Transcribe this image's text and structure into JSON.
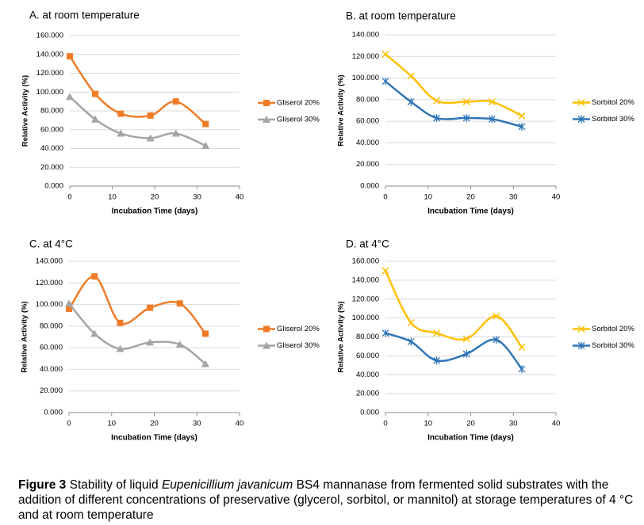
{
  "chart_data": [
    {
      "type": "line",
      "title": "A. at room temperature",
      "x_label": "Incubation Time (days)",
      "y_label": "Relative Activity (%)",
      "xlim": [
        0,
        40
      ],
      "xticks": [
        0,
        10,
        20,
        30,
        40
      ],
      "ylim": [
        0,
        160
      ],
      "yticks": [
        {
          "value": 0,
          "label": "0.000"
        },
        {
          "value": 20,
          "label": "20.000"
        },
        {
          "value": 40,
          "label": "40.000"
        },
        {
          "value": 60,
          "label": "60.000"
        },
        {
          "value": 80,
          "label": "80.000"
        },
        {
          "value": 100,
          "label": "100.000"
        },
        {
          "value": 120,
          "label": "120.000"
        },
        {
          "value": 140,
          "label": "140.000"
        },
        {
          "value": 160,
          "label": "160.000"
        }
      ],
      "grid": true,
      "legend": "right",
      "x": [
        0,
        6,
        12,
        19,
        25,
        32
      ],
      "series": [
        {
          "name": "Gliserol 20%",
          "color": "#f07c28",
          "marker": "square",
          "values": [
            138,
            98,
            77,
            75,
            90,
            66
          ]
        },
        {
          "name": "Gliserol 30%",
          "color": "#a5a5a5",
          "marker": "triangle",
          "values": [
            95,
            71,
            56,
            51,
            56,
            43
          ]
        }
      ]
    },
    {
      "type": "line",
      "title": "B. at room temperature",
      "x_label": "Incubation Time (days)",
      "y_label": "Relative Activity (%)",
      "xlim": [
        0,
        40
      ],
      "xticks": [
        0,
        10,
        20,
        30,
        40
      ],
      "ylim": [
        0,
        140
      ],
      "yticks": [
        {
          "value": 0,
          "label": "0.000"
        },
        {
          "value": 20,
          "label": "20.000"
        },
        {
          "value": 40,
          "label": "40.000"
        },
        {
          "value": 60,
          "label": "60.000"
        },
        {
          "value": 80,
          "label": "80.000"
        },
        {
          "value": 100,
          "label": "100.000"
        },
        {
          "value": 120,
          "label": "120.000"
        },
        {
          "value": 140,
          "label": "140.000"
        }
      ],
      "grid": true,
      "legend": "right",
      "x": [
        0,
        6,
        12,
        19,
        25,
        32
      ],
      "series": [
        {
          "name": "Sorbitol 20%",
          "color": "#ffc000",
          "marker": "x",
          "values": [
            122,
            102,
            79,
            78,
            78,
            65
          ]
        },
        {
          "name": "Sorbitol 30%",
          "color": "#2e75b6",
          "marker": "star",
          "values": [
            97,
            78,
            63,
            63,
            62,
            55
          ]
        }
      ]
    },
    {
      "type": "line",
      "title": "C. at 4°C",
      "x_label": "Incubation Time (days)",
      "y_label": "Relative Activity (%)",
      "xlim": [
        0,
        40
      ],
      "xticks": [
        0,
        10,
        20,
        30,
        40
      ],
      "ylim": [
        0,
        140
      ],
      "yticks": [
        {
          "value": 0,
          "label": "0.000"
        },
        {
          "value": 20,
          "label": "20.000"
        },
        {
          "value": 40,
          "label": "40.000"
        },
        {
          "value": 60,
          "label": "60.000"
        },
        {
          "value": 80,
          "label": "80.000"
        },
        {
          "value": 100,
          "label": "100.000"
        },
        {
          "value": 120,
          "label": "120.000"
        },
        {
          "value": 140,
          "label": "140.000"
        }
      ],
      "grid": true,
      "legend": "right",
      "x": [
        0,
        6,
        12,
        19,
        26,
        32
      ],
      "series": [
        {
          "name": "Gliserol 20%",
          "color": "#f07c28",
          "marker": "square",
          "values": [
            96,
            126,
            83,
            97,
            101,
            73
          ]
        },
        {
          "name": "Gliserol 30%",
          "color": "#a5a5a5",
          "marker": "triangle",
          "values": [
            101,
            73,
            59,
            65,
            63,
            45
          ]
        }
      ]
    },
    {
      "type": "line",
      "title": "D. at 4°C",
      "x_label": "Incubation Time (days)",
      "y_label": "Relative Activity (%)",
      "xlim": [
        0,
        40
      ],
      "xticks": [
        0,
        10,
        20,
        30,
        40
      ],
      "ylim": [
        0,
        160
      ],
      "yticks": [
        {
          "value": 0,
          "label": "0.000"
        },
        {
          "value": 20,
          "label": "20.000"
        },
        {
          "value": 40,
          "label": "40.000"
        },
        {
          "value": 60,
          "label": "60.000"
        },
        {
          "value": 80,
          "label": "80.000"
        },
        {
          "value": 100,
          "label": "100.000"
        },
        {
          "value": 120,
          "label": "120.000"
        },
        {
          "value": 140,
          "label": "140.000"
        },
        {
          "value": 160,
          "label": "160.000"
        }
      ],
      "grid": true,
      "legend": "right",
      "x": [
        0,
        6,
        12,
        19,
        26,
        32
      ],
      "series": [
        {
          "name": "Sorbitol 20%",
          "color": "#ffc000",
          "marker": "x",
          "values": [
            150,
            95,
            84,
            78,
            102,
            69
          ]
        },
        {
          "name": "Sorbitol 30%",
          "color": "#2e75b6",
          "marker": "star",
          "values": [
            84,
            75,
            55,
            62,
            77,
            46
          ]
        }
      ]
    }
  ],
  "caption": {
    "label": "Figure 3",
    "before": "Stability of liquid",
    "species": "Eupenicillium javanicum",
    "after": "BS4 mannanase from fermented solid substrates with the addition of different concentrations of preservative (glycerol, sorbitol, or mannitol) at storage temperatures of 4 °C and at room temperature"
  }
}
